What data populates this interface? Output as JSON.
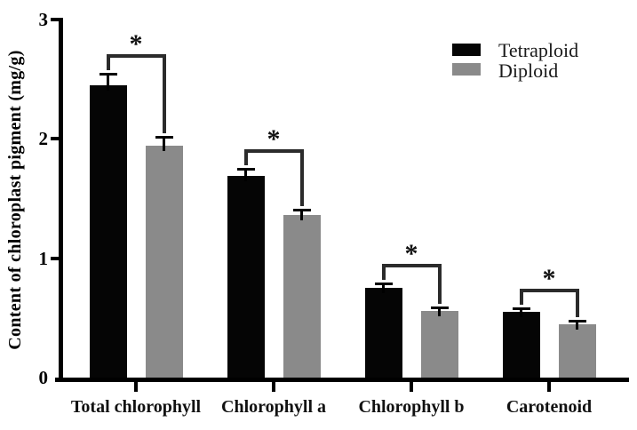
{
  "chart_data": {
    "type": "bar",
    "title": "",
    "xlabel": "",
    "ylabel": "Content of chloroplast pigment (mg/g)",
    "ylim": [
      0,
      3
    ],
    "yticks": [
      0,
      1,
      2,
      3
    ],
    "grid": false,
    "legend_position": "top-right",
    "categories": [
      "Total chlorophyll",
      "Chlorophyll a",
      "Chlorophyll b",
      "Carotenoid"
    ],
    "series": [
      {
        "name": "Tetraploid",
        "color": "#050505",
        "values": [
          2.45,
          1.69,
          0.75,
          0.55
        ],
        "errors": [
          0.1,
          0.06,
          0.04,
          0.03
        ]
      },
      {
        "name": "Diploid",
        "color": "#8a8a8a",
        "values": [
          1.94,
          1.36,
          0.56,
          0.45
        ],
        "errors": [
          0.08,
          0.05,
          0.03,
          0.03
        ]
      }
    ],
    "significance": [
      {
        "category": "Total chlorophyll",
        "label": "*"
      },
      {
        "category": "Chlorophyll a",
        "label": "*"
      },
      {
        "category": "Chlorophyll b",
        "label": "*"
      },
      {
        "category": "Carotenoid",
        "label": "*"
      }
    ]
  },
  "colors": {
    "axis": "#000000",
    "bracket": "#2b2b2b",
    "background": "#ffffff"
  }
}
